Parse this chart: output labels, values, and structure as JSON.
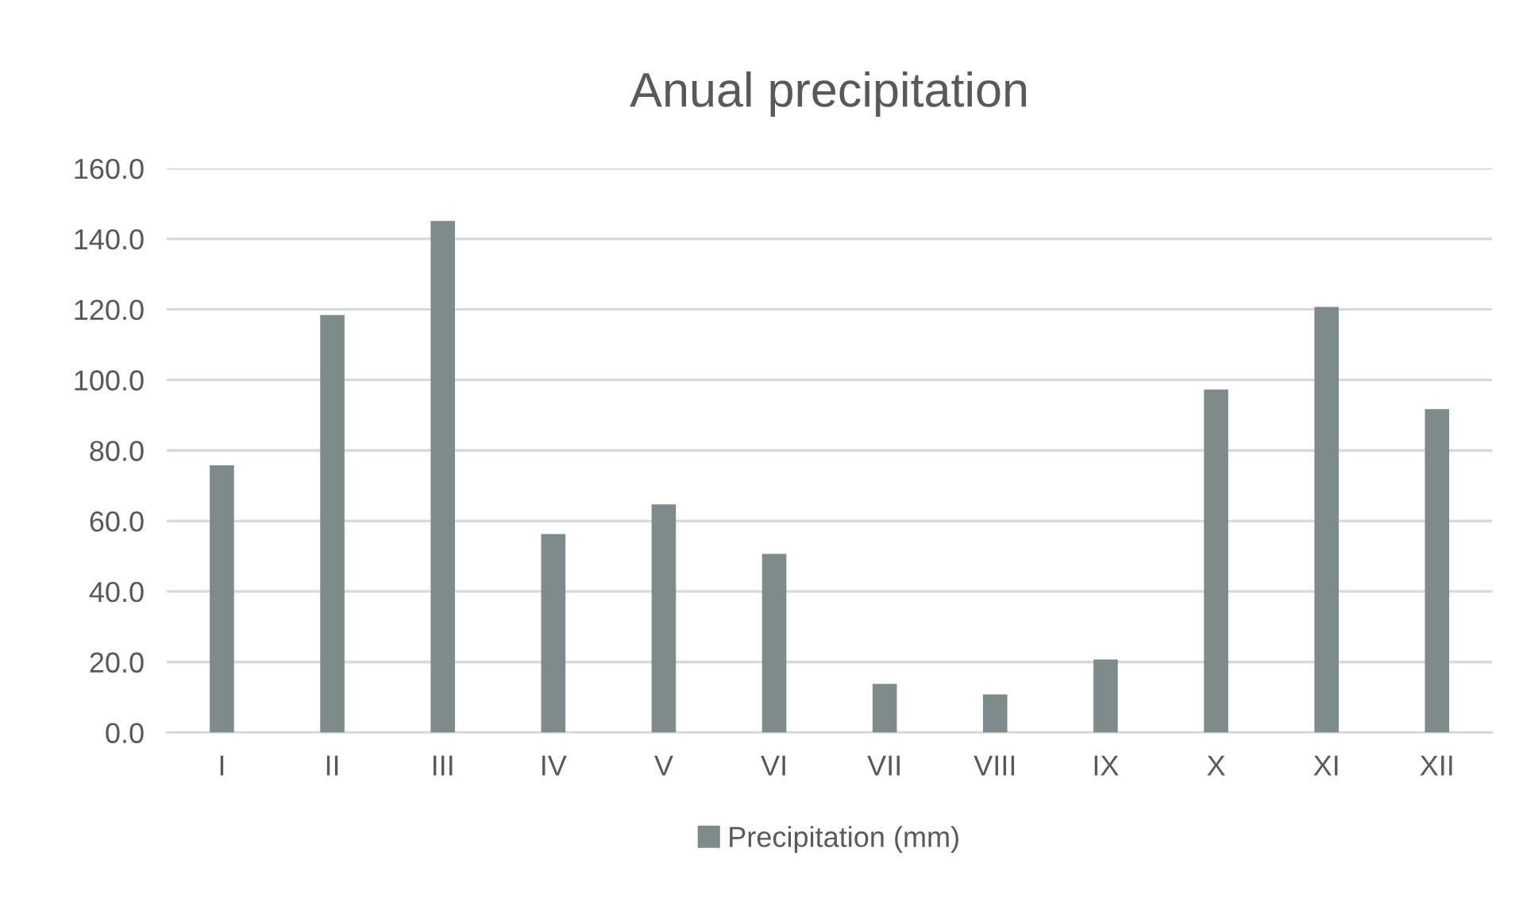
{
  "chart_data": {
    "type": "bar",
    "title": "Anual precipitation",
    "categories": [
      "I",
      "II",
      "III",
      "IV",
      "V",
      "VI",
      "VII",
      "VIII",
      "IX",
      "X",
      "XI",
      "XII"
    ],
    "series": [
      {
        "name": "Precipitation (mm)",
        "color": "#7f8b8a",
        "values": [
          75.8,
          118.4,
          145.1,
          56.3,
          64.7,
          50.7,
          13.8,
          10.8,
          20.7,
          97.3,
          120.7,
          91.7
        ]
      }
    ],
    "ylim": [
      0,
      160
    ],
    "yticks": [
      {
        "value": 0,
        "label": "0.0"
      },
      {
        "value": 20,
        "label": "20.0"
      },
      {
        "value": 40,
        "label": "40.0"
      },
      {
        "value": 60,
        "label": "60.0"
      },
      {
        "value": 80,
        "label": "80.0"
      },
      {
        "value": 100,
        "label": "100.0"
      },
      {
        "value": 120,
        "label": "120.0"
      },
      {
        "value": 140,
        "label": "140.0"
      },
      {
        "value": 160,
        "label": "160.0"
      }
    ],
    "grid": "y",
    "legend": "bottom"
  }
}
